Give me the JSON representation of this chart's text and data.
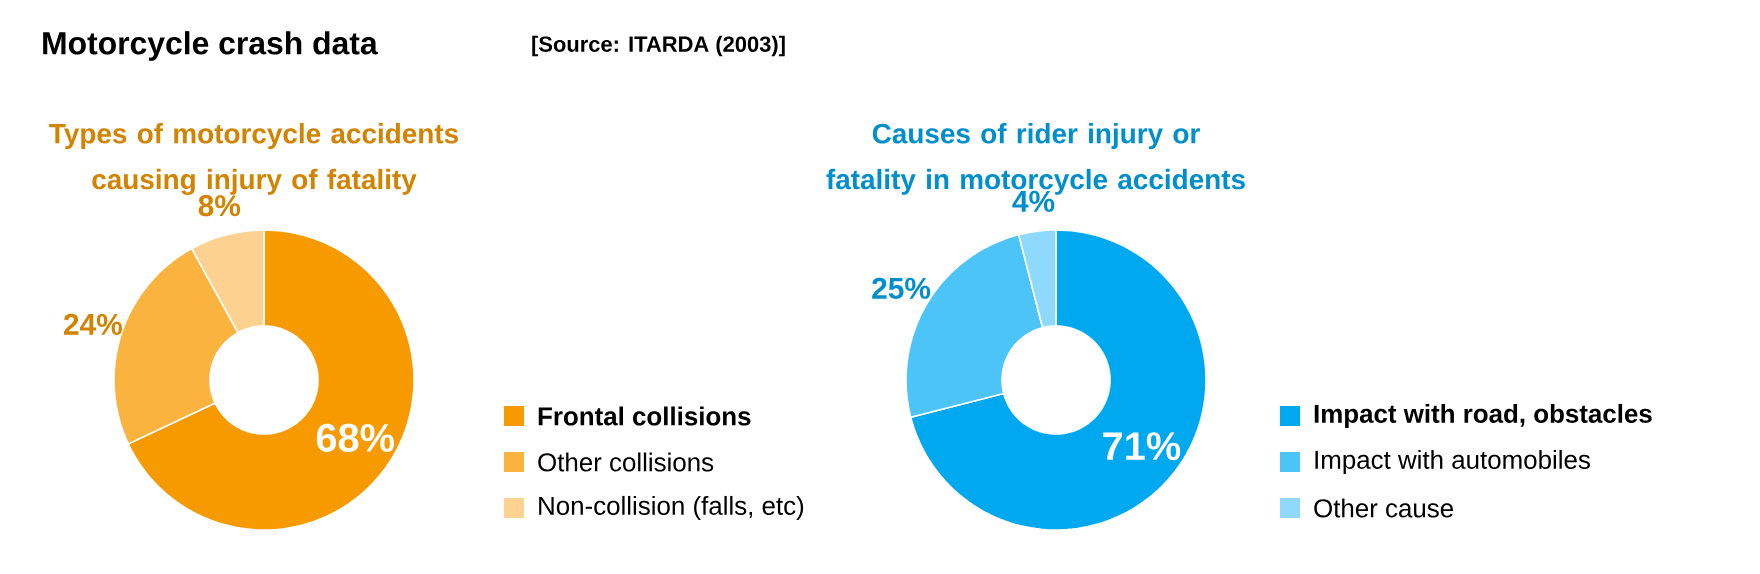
{
  "chart_data": [
    {
      "type": "other",
      "title": "Motorcycle crash data",
      "annotations": [
        "[Source: ITARDA (2003)]"
      ]
    },
    {
      "type": "donut",
      "title": "Types of motorcycle accidents causing injury of fatality",
      "categories": [
        "Frontal collisions",
        "Other collisions",
        "Non-collision (falls, etc)"
      ],
      "values": [
        68,
        24,
        8
      ],
      "value_labels": [
        "68%",
        "24%",
        "8%"
      ],
      "data_labels": true,
      "colors": [
        "#f79a00",
        "#fbb340",
        "#fdd290"
      ],
      "legend": "right"
    },
    {
      "type": "donut",
      "title": "Causes of rider injury or fatality in motorcycle accidents",
      "categories": [
        "Impact with road, obstacles",
        "Impact with automobiles",
        "Other cause"
      ],
      "values": [
        71,
        25,
        4
      ],
      "value_labels": [
        "71%",
        "25%",
        "4%"
      ],
      "data_labels": true,
      "colors": [
        "#00a8f0",
        "#4cc4f8",
        "#8fdafc"
      ],
      "legend": "right"
    }
  ]
}
